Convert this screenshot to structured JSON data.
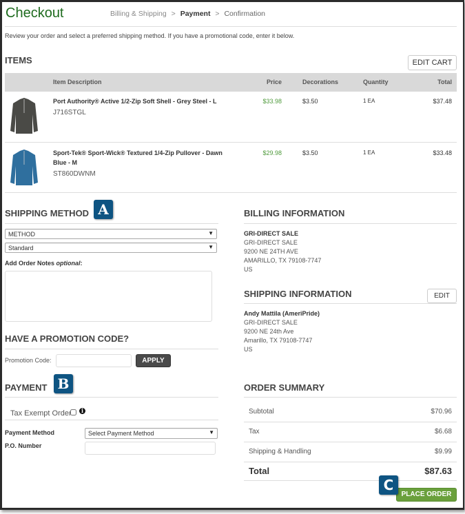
{
  "header": {
    "title": "Checkout",
    "breadcrumb": [
      "Billing & Shipping",
      ">",
      "Payment",
      ">",
      "Confirmation"
    ],
    "active_step": "Payment"
  },
  "intro": "Review your order and select a preferred shipping method. If you have a promotional code, enter it below.",
  "items": {
    "title": "ITEMS",
    "edit_cart": "EDIT CART",
    "columns": [
      "Item Description",
      "Price",
      "Decorations",
      "Quantity",
      "Total"
    ],
    "rows": [
      {
        "name": "Port Authority® Active 1/2-Zip Soft Shell - Grey Steel - L",
        "name2": "",
        "sku": "J716STGL",
        "price": "$33.98",
        "decorations": "$3.50",
        "quantity": "1 EA",
        "total": "$37.48",
        "image": "grey-jacket",
        "color": "#4a4a46"
      },
      {
        "name": "Sport-Tek® Sport-Wick® Textured 1/4-Zip Pullover - Dawn",
        "name2": "Blue - M",
        "sku": "ST860DWNM",
        "price": "$29.98",
        "decorations": "$3.50",
        "quantity": "1 EA",
        "total": "$33.48",
        "image": "blue-pullover",
        "color": "#2f6f9e"
      }
    ]
  },
  "shipping": {
    "title": "SHIPPING METHOD",
    "badge": "A",
    "method_select": "METHOD",
    "speed_select": "Standard",
    "notes_label": "Add Order Notes",
    "notes_optional": "optional",
    "notes_colon": ":",
    "notes_value": ""
  },
  "promo": {
    "title": "HAVE A PROMOTION CODE?",
    "label": "Promotion Code:",
    "value": "",
    "apply": "APPLY"
  },
  "payment": {
    "title": "PAYMENT",
    "badge": "B",
    "tax_exempt": "Tax Exempt Order",
    "tax_exempt_checked": false,
    "info_icon": "info-icon",
    "method_label": "Payment Method",
    "method_select": "Select Payment Method",
    "po_label": "P.O. Number",
    "po_value": ""
  },
  "billing": {
    "title": "BILLING INFORMATION",
    "lines": [
      "GRI-DIRECT SALE",
      "GRI-DIRECT SALE",
      "9200 NE 24TH AVE",
      "AMARILLO, TX 79108-7747",
      "US"
    ]
  },
  "shipping_info": {
    "title": "SHIPPING INFORMATION",
    "edit": "EDIT",
    "lines": [
      "Andy Mattila (AmeriPride)",
      "GRI-DIRECT SALE",
      "9200 NE 24th Ave",
      "Amarillo, TX 79108-7747",
      "US"
    ]
  },
  "summary": {
    "title": "ORDER SUMMARY",
    "rows": [
      {
        "label": "Subtotal",
        "value": "$70.96"
      },
      {
        "label": "Tax",
        "value": "$6.68"
      },
      {
        "label": "Shipping & Handling",
        "value": "$9.99"
      }
    ],
    "total_label": "Total",
    "total_value": "$87.63",
    "badge": "C",
    "place_order": "PLACE ORDER"
  },
  "colors": {
    "brand_green": "#1e6b1e",
    "price_green": "#4f9a3c",
    "place_order": "#6aa03c",
    "badge_blue": "#0e5482",
    "header_gray": "#d9d9d9"
  }
}
